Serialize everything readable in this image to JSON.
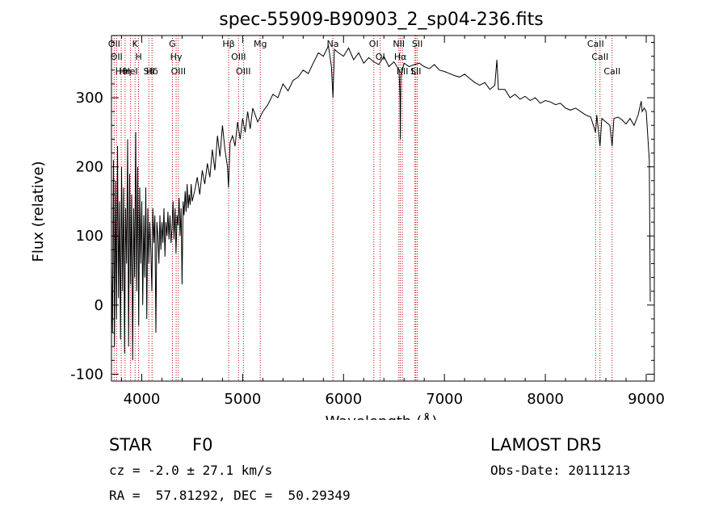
{
  "chart_data": {
    "type": "line",
    "title": "spec-55909-B90903_2_sp04-236.fits",
    "xlabel": "Wavelength (Å)",
    "ylabel": "Flux (relative)",
    "xlim": [
      3700,
      9080
    ],
    "ylim": [
      -110,
      390
    ],
    "xticks": [
      4000,
      5000,
      6000,
      7000,
      8000,
      9000
    ],
    "yticks": [
      -100,
      0,
      100,
      200,
      300
    ],
    "grid": false,
    "line_color": "#000000",
    "marker_line_color": "#cc0000",
    "series": [
      {
        "points": [
          [
            3700,
            60
          ],
          [
            3710,
            -40
          ],
          [
            3720,
            210
          ],
          [
            3730,
            -60
          ],
          [
            3740,
            180
          ],
          [
            3750,
            -20
          ],
          [
            3760,
            230
          ],
          [
            3770,
            10
          ],
          [
            3780,
            150
          ],
          [
            3790,
            -50
          ],
          [
            3800,
            200
          ],
          [
            3810,
            20
          ],
          [
            3820,
            170
          ],
          [
            3830,
            -70
          ],
          [
            3840,
            140
          ],
          [
            3850,
            60
          ],
          [
            3860,
            240
          ],
          [
            3870,
            -60
          ],
          [
            3880,
            190
          ],
          [
            3890,
            30
          ],
          [
            3900,
            160
          ],
          [
            3910,
            -80
          ],
          [
            3920,
            140
          ],
          [
            3930,
            40
          ],
          [
            3940,
            250
          ],
          [
            3950,
            20
          ],
          [
            3960,
            200
          ],
          [
            3970,
            -30
          ],
          [
            3980,
            170
          ],
          [
            3990,
            60
          ],
          [
            4000,
            150
          ],
          [
            4010,
            0
          ],
          [
            4020,
            130
          ],
          [
            4030,
            40
          ],
          [
            4040,
            170
          ],
          [
            4050,
            -20
          ],
          [
            4060,
            140
          ],
          [
            4070,
            60
          ],
          [
            4080,
            120
          ],
          [
            4090,
            80
          ],
          [
            4100,
            20
          ],
          [
            4110,
            140
          ],
          [
            4120,
            90
          ],
          [
            4130,
            130
          ],
          [
            4140,
            -40
          ],
          [
            4150,
            120
          ],
          [
            4160,
            100
          ],
          [
            4170,
            60
          ],
          [
            4180,
            130
          ],
          [
            4190,
            80
          ],
          [
            4200,
            120
          ],
          [
            4210,
            90
          ],
          [
            4220,
            140
          ],
          [
            4230,
            70
          ],
          [
            4240,
            120
          ],
          [
            4250,
            100
          ],
          [
            4260,
            135
          ],
          [
            4270,
            95
          ],
          [
            4280,
            130
          ],
          [
            4290,
            90
          ],
          [
            4300,
            110
          ],
          [
            4310,
            150
          ],
          [
            4320,
            95
          ],
          [
            4330,
            140
          ],
          [
            4340,
            75
          ],
          [
            4350,
            130
          ],
          [
            4360,
            115
          ],
          [
            4370,
            155
          ],
          [
            4380,
            100
          ],
          [
            4390,
            140
          ],
          [
            4400,
            30
          ],
          [
            4410,
            150
          ],
          [
            4420,
            130
          ],
          [
            4430,
            165
          ],
          [
            4440,
            135
          ],
          [
            4450,
            175
          ],
          [
            4460,
            140
          ],
          [
            4470,
            160
          ],
          [
            4480,
            145
          ],
          [
            4490,
            175
          ],
          [
            4500,
            150
          ],
          [
            4525,
            165
          ],
          [
            4550,
            185
          ],
          [
            4575,
            160
          ],
          [
            4600,
            195
          ],
          [
            4625,
            175
          ],
          [
            4650,
            205
          ],
          [
            4675,
            185
          ],
          [
            4700,
            225
          ],
          [
            4725,
            195
          ],
          [
            4750,
            245
          ],
          [
            4775,
            215
          ],
          [
            4800,
            260
          ],
          [
            4825,
            225
          ],
          [
            4850,
            200
          ],
          [
            4860,
            170
          ],
          [
            4875,
            235
          ],
          [
            4900,
            245
          ],
          [
            4925,
            230
          ],
          [
            4950,
            265
          ],
          [
            4975,
            240
          ],
          [
            5000,
            270
          ],
          [
            5025,
            250
          ],
          [
            5050,
            280
          ],
          [
            5075,
            255
          ],
          [
            5100,
            285
          ],
          [
            5150,
            265
          ],
          [
            5200,
            280
          ],
          [
            5250,
            290
          ],
          [
            5300,
            305
          ],
          [
            5350,
            300
          ],
          [
            5400,
            320
          ],
          [
            5450,
            310
          ],
          [
            5500,
            325
          ],
          [
            5550,
            330
          ],
          [
            5600,
            340
          ],
          [
            5650,
            335
          ],
          [
            5700,
            350
          ],
          [
            5750,
            365
          ],
          [
            5800,
            360
          ],
          [
            5850,
            375
          ],
          [
            5880,
            345
          ],
          [
            5895,
            300
          ],
          [
            5910,
            370
          ],
          [
            5950,
            365
          ],
          [
            6000,
            360
          ],
          [
            6050,
            372
          ],
          [
            6100,
            355
          ],
          [
            6150,
            365
          ],
          [
            6200,
            350
          ],
          [
            6250,
            358
          ],
          [
            6300,
            352
          ],
          [
            6350,
            348
          ],
          [
            6400,
            360
          ],
          [
            6450,
            345
          ],
          [
            6500,
            352
          ],
          [
            6530,
            345
          ],
          [
            6550,
            340
          ],
          [
            6560,
            300
          ],
          [
            6563,
            240
          ],
          [
            6568,
            330
          ],
          [
            6600,
            350
          ],
          [
            6650,
            345
          ],
          [
            6700,
            348
          ],
          [
            6750,
            350
          ],
          [
            6800,
            345
          ],
          [
            6850,
            342
          ],
          [
            6900,
            348
          ],
          [
            6950,
            340
          ],
          [
            7000,
            338
          ],
          [
            7050,
            335
          ],
          [
            7100,
            332
          ],
          [
            7150,
            330
          ],
          [
            7200,
            334
          ],
          [
            7250,
            328
          ],
          [
            7300,
            322
          ],
          [
            7350,
            318
          ],
          [
            7400,
            322
          ],
          [
            7450,
            312
          ],
          [
            7500,
            318
          ],
          [
            7520,
            355
          ],
          [
            7535,
            312
          ],
          [
            7600,
            312
          ],
          [
            7650,
            300
          ],
          [
            7700,
            305
          ],
          [
            7750,
            298
          ],
          [
            7800,
            302
          ],
          [
            7850,
            296
          ],
          [
            7900,
            300
          ],
          [
            7950,
            292
          ],
          [
            8000,
            296
          ],
          [
            8050,
            294
          ],
          [
            8100,
            290
          ],
          [
            8150,
            292
          ],
          [
            8200,
            285
          ],
          [
            8250,
            282
          ],
          [
            8300,
            285
          ],
          [
            8350,
            280
          ],
          [
            8400,
            275
          ],
          [
            8450,
            272
          ],
          [
            8498,
            250
          ],
          [
            8510,
            275
          ],
          [
            8542,
            230
          ],
          [
            8560,
            270
          ],
          [
            8600,
            265
          ],
          [
            8640,
            260
          ],
          [
            8662,
            230
          ],
          [
            8680,
            270
          ],
          [
            8720,
            272
          ],
          [
            8760,
            268
          ],
          [
            8800,
            262
          ],
          [
            8840,
            270
          ],
          [
            8880,
            260
          ],
          [
            8920,
            275
          ],
          [
            8950,
            295
          ],
          [
            8960,
            280
          ],
          [
            8980,
            285
          ],
          [
            9000,
            280
          ],
          [
            9030,
            210
          ],
          [
            9040,
            5
          ]
        ]
      }
    ],
    "line_markers": [
      {
        "wavelength": 3727,
        "label": "OII"
      },
      {
        "wavelength": 3750,
        "label": "OII"
      },
      {
        "wavelength": 3797,
        "label": "Hθ"
      },
      {
        "wavelength": 3835,
        "label": "Hη"
      },
      {
        "wavelength": 3889,
        "label": "HeI"
      },
      {
        "wavelength": 3934,
        "label": "K"
      },
      {
        "wavelength": 3969,
        "label": "H"
      },
      {
        "wavelength": 4070,
        "label": "SII"
      },
      {
        "wavelength": 4102,
        "label": "Hδ"
      },
      {
        "wavelength": 4304,
        "label": "G"
      },
      {
        "wavelength": 4341,
        "label": "Hγ"
      },
      {
        "wavelength": 4363,
        "label": "OIII"
      },
      {
        "wavelength": 4861,
        "label": "Hβ"
      },
      {
        "wavelength": 4959,
        "label": "OIII"
      },
      {
        "wavelength": 5007,
        "label": "OIII"
      },
      {
        "wavelength": 5175,
        "label": "Mg"
      },
      {
        "wavelength": 5894,
        "label": "Na"
      },
      {
        "wavelength": 6300,
        "label": "OI"
      },
      {
        "wavelength": 6364,
        "label": "OI"
      },
      {
        "wavelength": 6548,
        "label": "NII"
      },
      {
        "wavelength": 6563,
        "label": "Hα"
      },
      {
        "wavelength": 6583,
        "label": "NII"
      },
      {
        "wavelength": 6707,
        "label": "Li"
      },
      {
        "wavelength": 6716,
        "label": "SII"
      },
      {
        "wavelength": 6731,
        "label": "SII"
      },
      {
        "wavelength": 8498,
        "label": "CaII"
      },
      {
        "wavelength": 8542,
        "label": "CaII"
      },
      {
        "wavelength": 8662,
        "label": "CaII"
      }
    ]
  },
  "info": {
    "object_class": "STAR",
    "subclass": "F0",
    "survey": "LAMOST DR5",
    "redshift": "cz = -2.0 ± 27.1 km/s",
    "obs_date": "Obs-Date: 20111213",
    "coords": "RA =  57.81292, DEC =  50.29349"
  }
}
